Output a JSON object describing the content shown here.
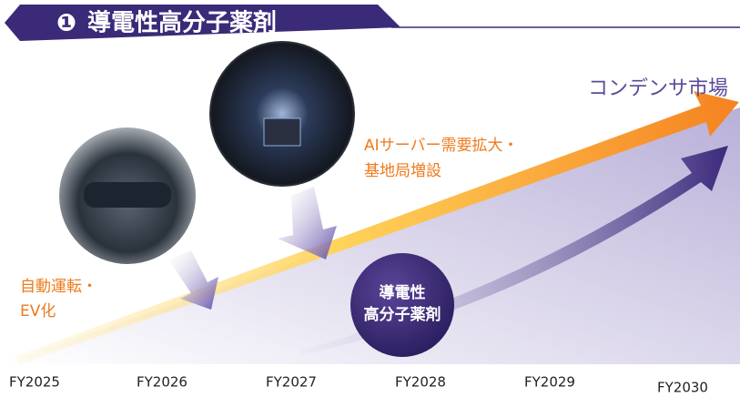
{
  "header": {
    "number": "❶",
    "title": "導電性高分子薬剤"
  },
  "market_label": "コンデンサ市場",
  "drivers": [
    {
      "lines": [
        "AIサーバー需要拡大・",
        "基地局増設"
      ]
    },
    {
      "lines": [
        "自動運転・",
        "EV化"
      ]
    }
  ],
  "product": {
    "lines": [
      "導電性",
      "高分子薬剤"
    ]
  },
  "years": [
    "FY2025",
    "FY2026",
    "FY2027",
    "FY2028",
    "FY2029",
    "FY2030"
  ]
}
